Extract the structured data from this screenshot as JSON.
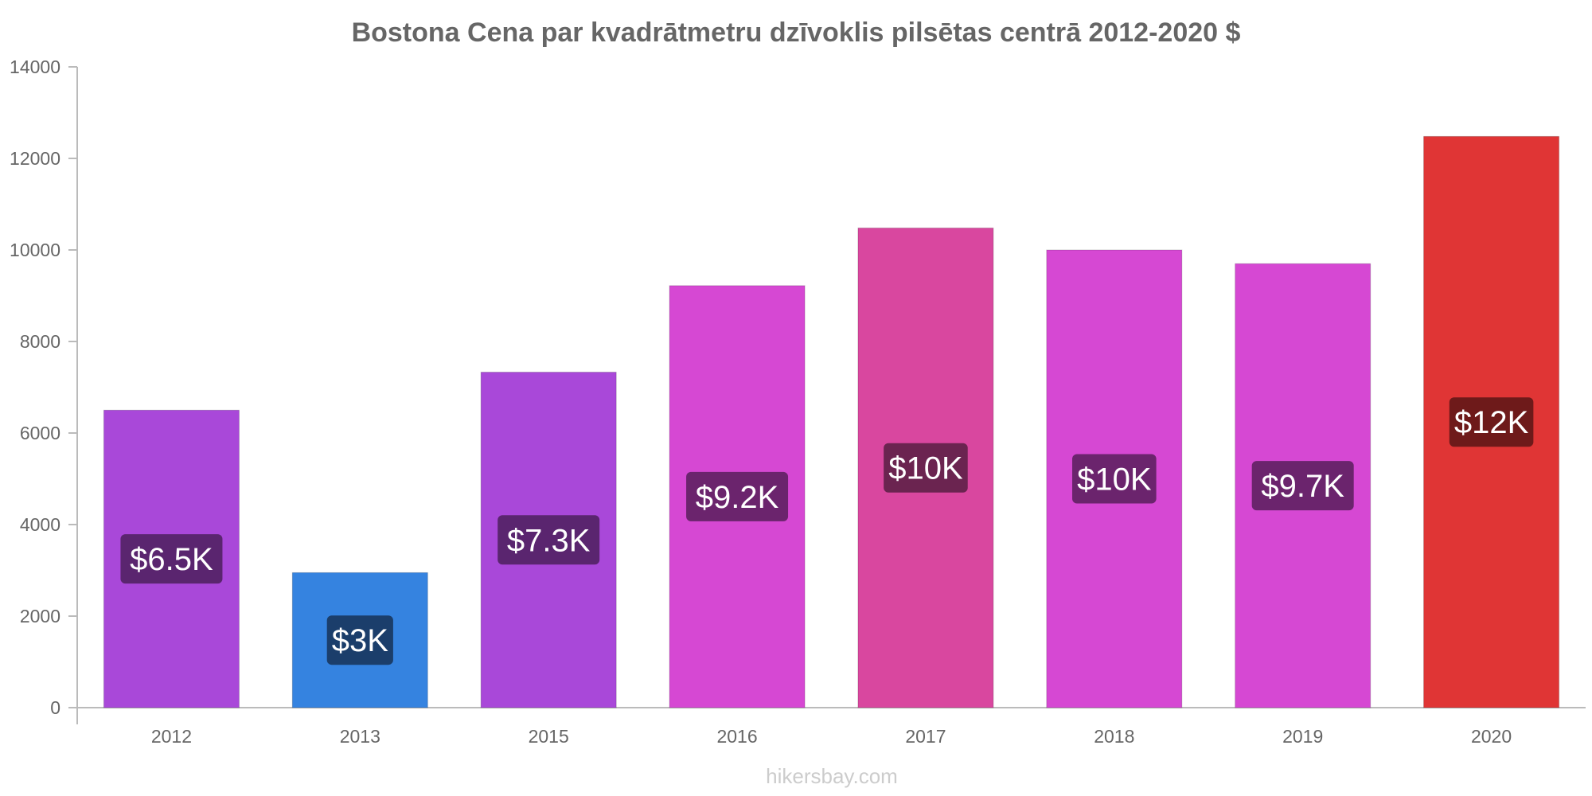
{
  "chart_data": {
    "type": "bar",
    "title": "Bostona Cena par kvadrātmetru dzīvoklis pilsētas centrā 2012-2020 $",
    "xlabel": "",
    "ylabel": "",
    "categories": [
      "2012",
      "2013",
      "2015",
      "2016",
      "2017",
      "2018",
      "2019",
      "2020"
    ],
    "values": [
      6500,
      2950,
      7330,
      9220,
      10480,
      10000,
      9700,
      12480
    ],
    "data_labels": [
      "$6.5K",
      "$3K",
      "$7.3K",
      "$9.2K",
      "$10K",
      "$10K",
      "$9.7K",
      "$12K"
    ],
    "bar_colors": [
      "#a948d9",
      "#3583e0",
      "#a948d9",
      "#d648d3",
      "#d9479f",
      "#d648d3",
      "#d648d3",
      "#e03535"
    ],
    "label_bg_colors": [
      "#5a256f",
      "#1b3e6b",
      "#5a256f",
      "#6b246d",
      "#6b2450",
      "#6b246d",
      "#6b246d",
      "#6e1a1a"
    ],
    "ylim": [
      0,
      14000
    ],
    "yticks": [
      "0",
      "2000",
      "4000",
      "6000",
      "8000",
      "10000",
      "12000",
      "14000"
    ],
    "grid": false,
    "legend": "none"
  },
  "watermark": "hikersbay.com"
}
